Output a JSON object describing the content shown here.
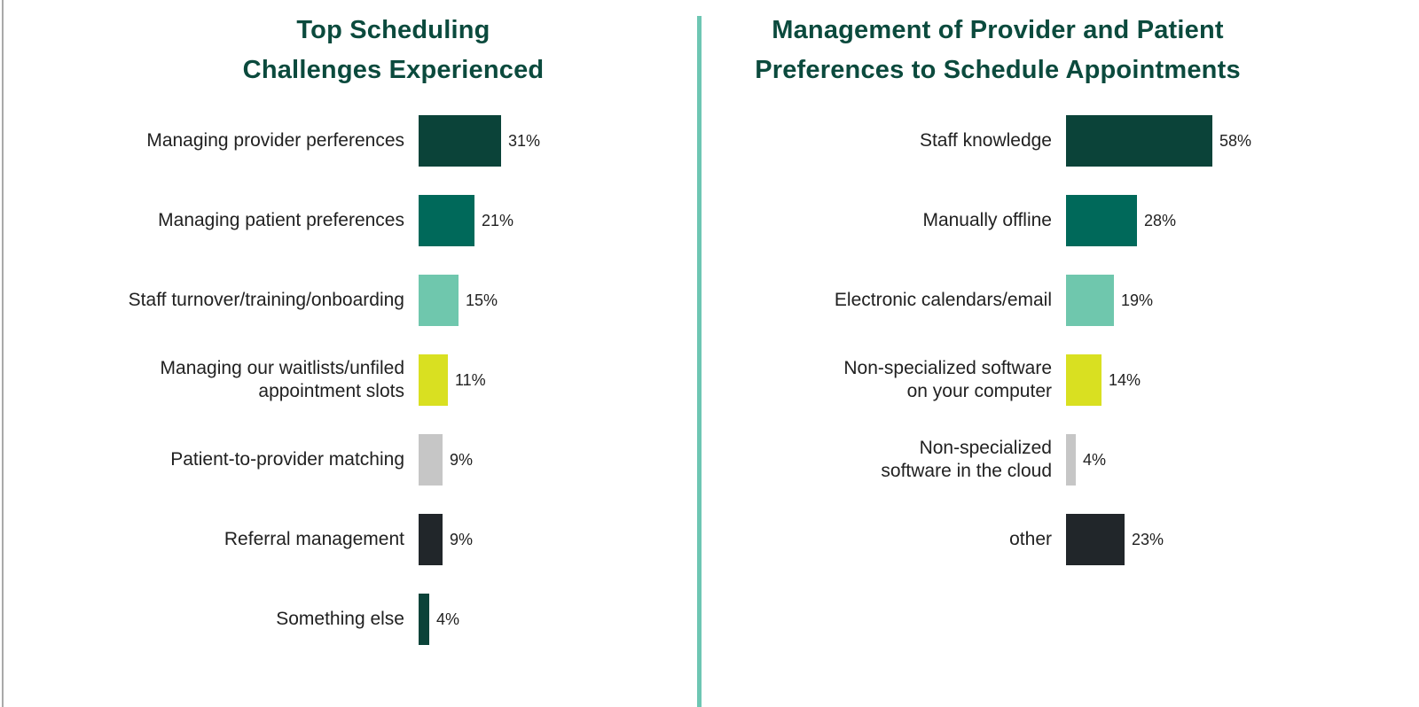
{
  "page": {
    "background": "#ffffff",
    "divider_color": "#6ec6b3",
    "left_border_color": "#a9a9a9",
    "title_color": "#0b4a3d",
    "text_color": "#212121"
  },
  "chart_data": [
    {
      "type": "bar",
      "orientation": "horizontal",
      "title": "Top Scheduling Challenges Experienced",
      "title_display": "Top Scheduling\nChallenges Experienced",
      "categories": [
        "Managing provider perferences",
        "Managing patient preferences",
        "Staff turnover/training/onboarding",
        "Managing our waitlists/unfiled appointment slots",
        "Patient-to-provider matching",
        "Referral management",
        "Something else"
      ],
      "display_labels": [
        "Managing provider perferences",
        "Managing patient preferences",
        "Staff turnover/training/onboarding",
        "Managing our waitlists/unfiled\nappointment slots",
        "Patient-to-provider matching",
        "Referral management",
        "Something else"
      ],
      "values": [
        31,
        21,
        15,
        11,
        9,
        9,
        4
      ],
      "value_labels": [
        "31%",
        "21%",
        "15%",
        "11%",
        "9%",
        "9%",
        "4%"
      ],
      "bar_colors": [
        "#0b4339",
        "#00695a",
        "#6fc7ad",
        "#d9e021",
        "#c6c6c6",
        "#21262a",
        "#0b4339"
      ],
      "unit": "%",
      "xlim": [
        0,
        62
      ],
      "grid": false,
      "legend": false
    },
    {
      "type": "bar",
      "orientation": "horizontal",
      "title": "Management of Provider and Patient Preferences to Schedule Appointments",
      "title_display": "Management of Provider and Patient\nPreferences to Schedule Appointments",
      "categories": [
        "Staff knowledge",
        "Manually offline",
        "Electronic calendars/email",
        "Non-specialized software on your computer",
        "Non-specialized software in the cloud",
        "other"
      ],
      "display_labels": [
        "Staff knowledge",
        "Manually offline",
        "Electronic calendars/email",
        "Non-specialized software\non your computer",
        "Non-specialized\nsoftware in the cloud",
        "other"
      ],
      "values": [
        58,
        28,
        19,
        14,
        4,
        23
      ],
      "value_labels": [
        "58%",
        "28%",
        "19%",
        "14%",
        "4%",
        "23%"
      ],
      "bar_colors": [
        "#0b4339",
        "#00695a",
        "#6fc7ad",
        "#d9e021",
        "#c6c6c6",
        "#21262a"
      ],
      "unit": "%",
      "xlim": [
        0,
        62
      ],
      "grid": false,
      "legend": false
    }
  ]
}
